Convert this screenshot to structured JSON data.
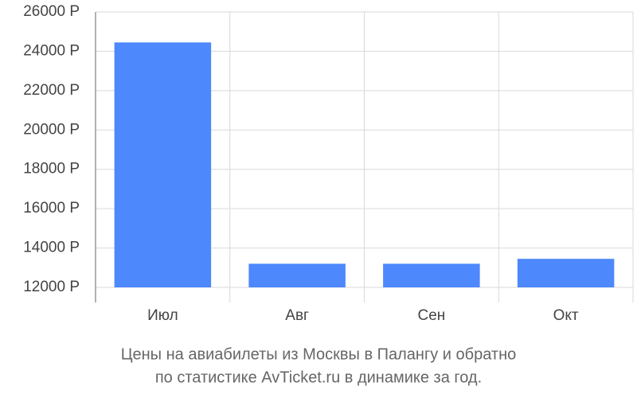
{
  "chart_data": {
    "type": "bar",
    "title": [
      "Цены на авиабилеты из Москвы в Палангу и обратно",
      "по статистике AvTicket.ru в динамике за год."
    ],
    "categories": [
      "Июл",
      "Авг",
      "Сен",
      "Окт"
    ],
    "values": [
      24450,
      13200,
      13200,
      13450
    ],
    "color": "#4d88fc",
    "ylim": [
      12000,
      26000
    ],
    "yticks": [
      {
        "value": 12000,
        "label": "12000 Р"
      },
      {
        "value": 14000,
        "label": "14000 Р"
      },
      {
        "value": 16000,
        "label": "16000 Р"
      },
      {
        "value": 18000,
        "label": "18000 Р"
      },
      {
        "value": 20000,
        "label": "20000 Р"
      },
      {
        "value": 22000,
        "label": "22000 Р"
      },
      {
        "value": 24000,
        "label": "24000 Р"
      },
      {
        "value": 26000,
        "label": "26000 Р"
      }
    ],
    "grid": true
  }
}
